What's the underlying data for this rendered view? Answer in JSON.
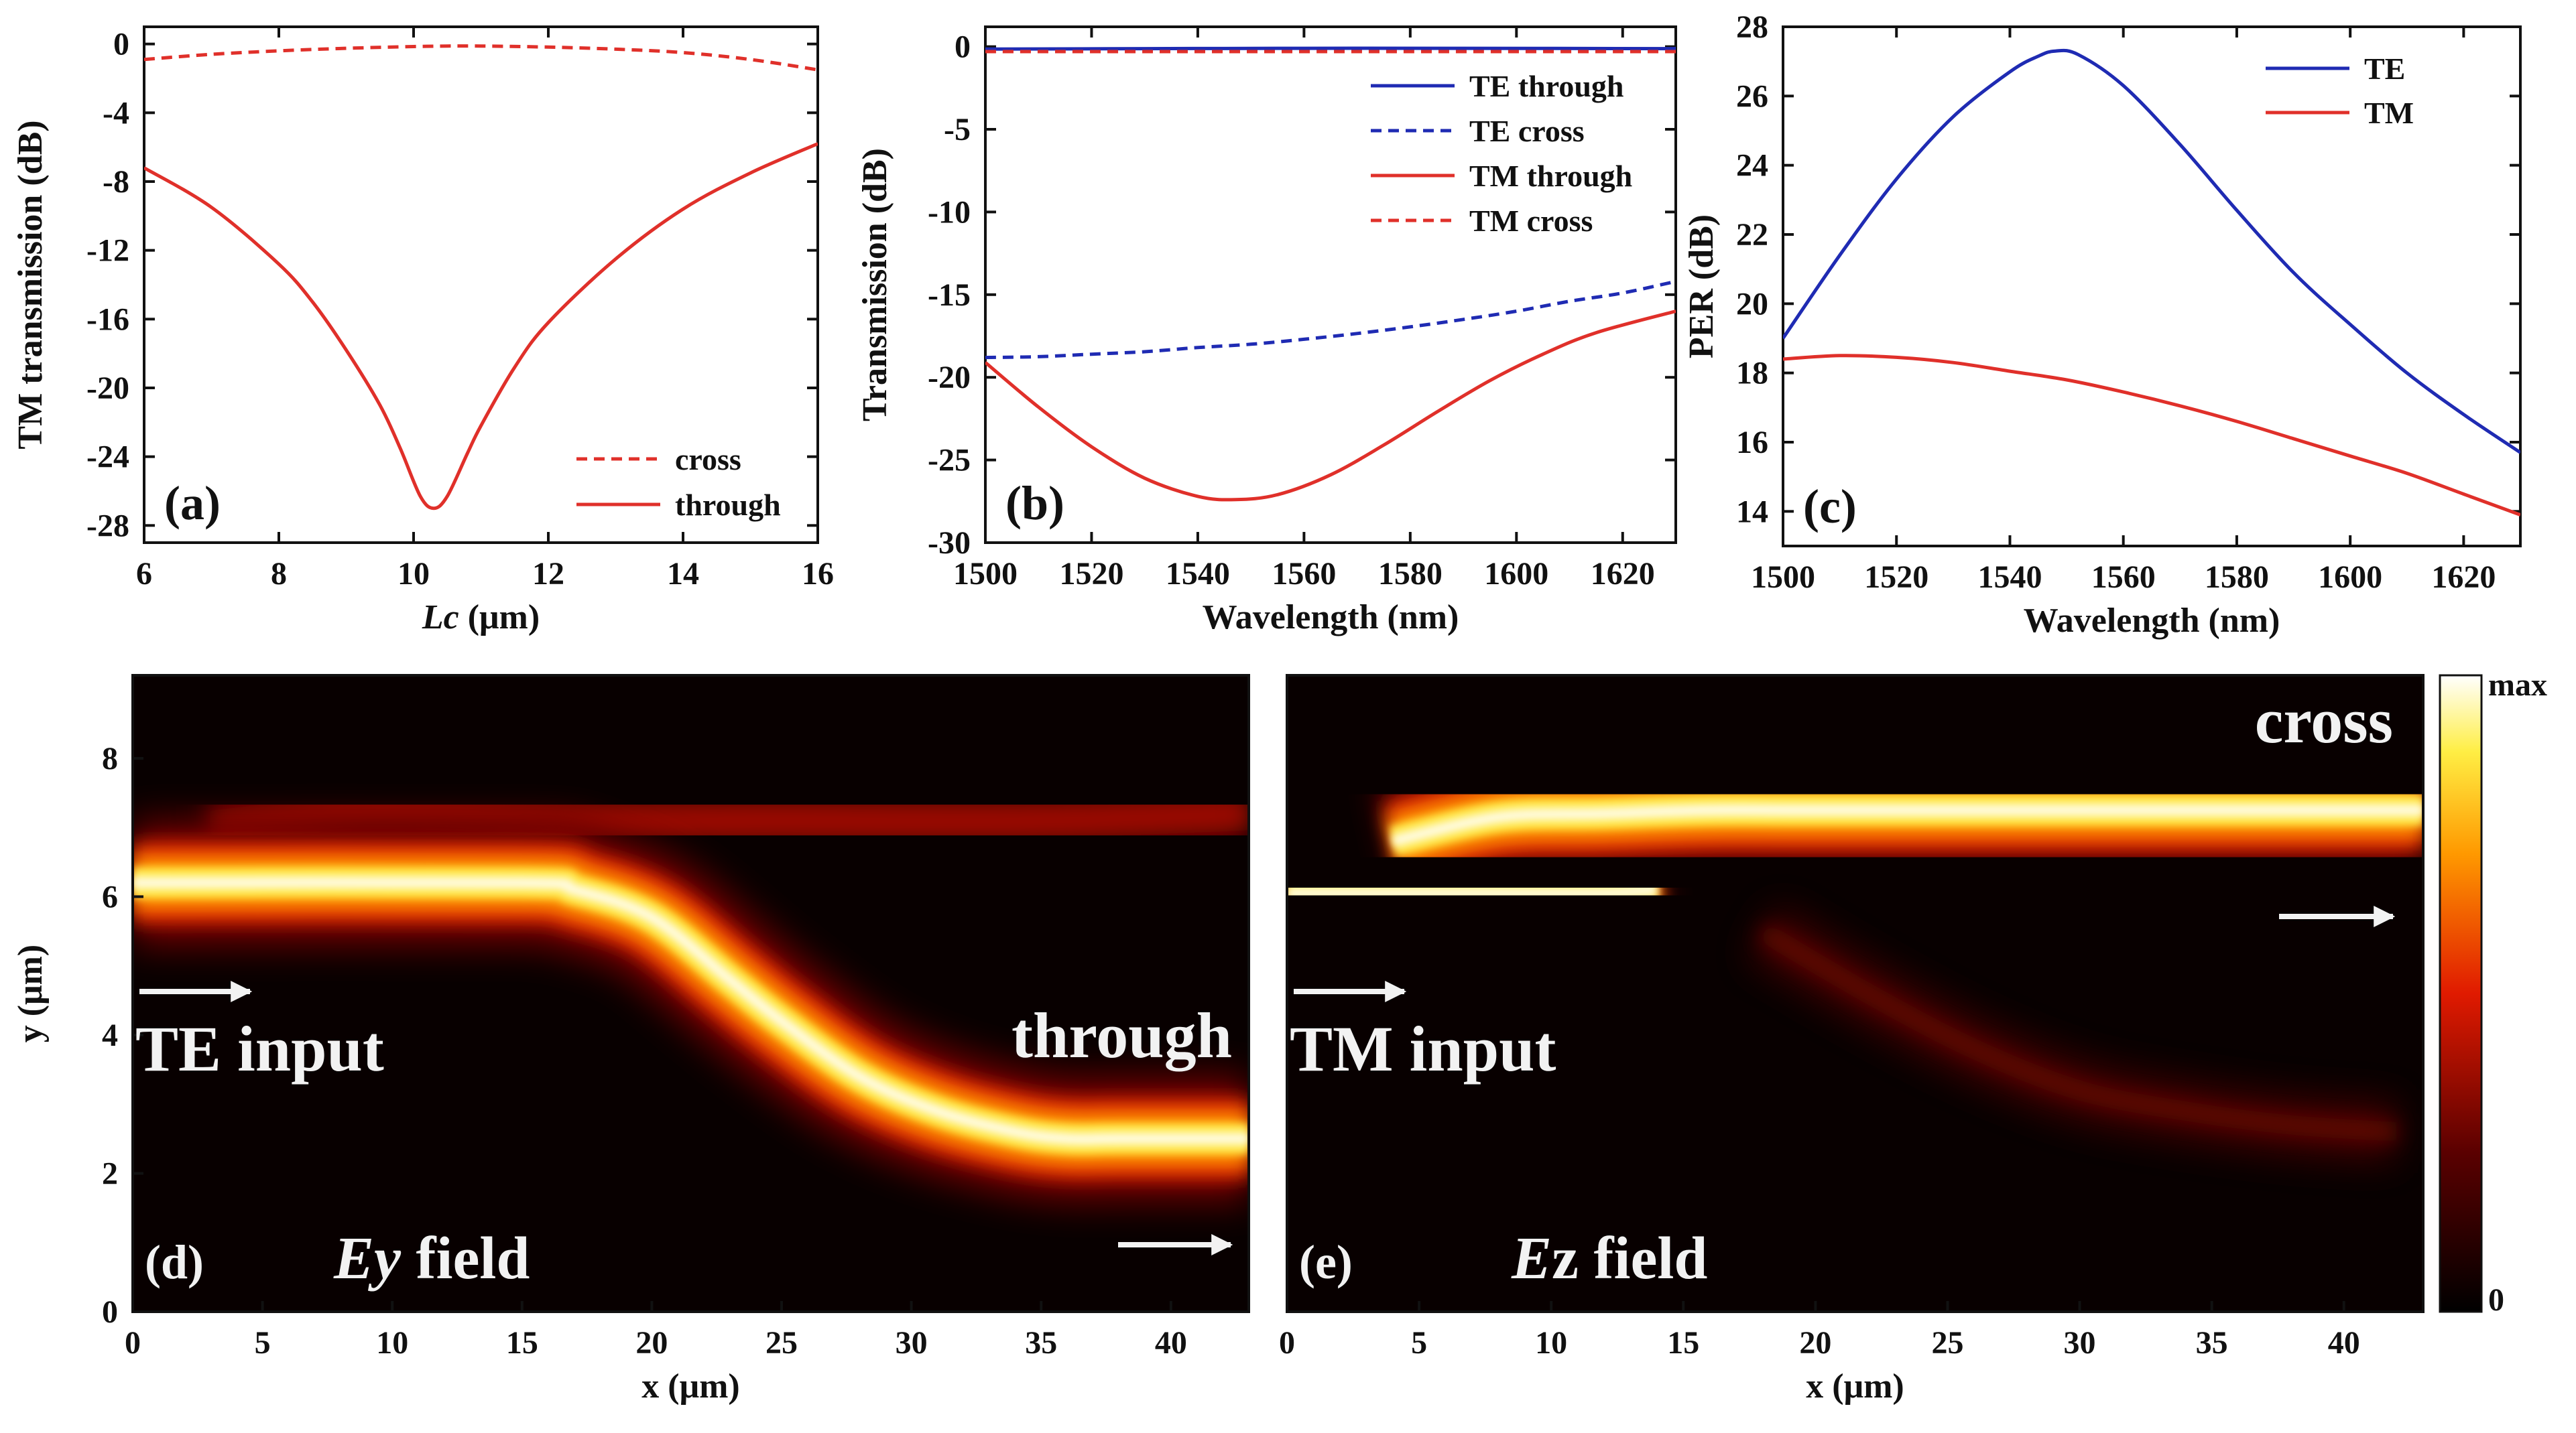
{
  "colors": {
    "te": "#1f2bb3",
    "tm": "#e0302a",
    "axis": "#111111",
    "overlay_text": "#f2f2f2",
    "field_bg": "#080000"
  },
  "chart_data": [
    {
      "id": "a",
      "type": "line",
      "panel_label": "(a)",
      "xlabel_italic": "Lc",
      "xlabel_rest": " (μm)",
      "ylabel": "TM transmission (dB)",
      "xlim": [
        6,
        16
      ],
      "ylim": [
        -29,
        1
      ],
      "xticks": [
        6,
        8,
        10,
        12,
        14,
        16
      ],
      "yticks": [
        0,
        -4,
        -8,
        -12,
        -16,
        -20,
        -24,
        -28
      ],
      "legend_position": "bottom-right",
      "series": [
        {
          "name": "cross",
          "style": "dashed",
          "color": "#e0302a",
          "x": [
            6,
            7,
            8,
            9,
            10,
            10.5,
            11,
            12,
            13,
            14,
            15,
            16
          ],
          "y": [
            -0.9,
            -0.6,
            -0.4,
            -0.25,
            -0.15,
            -0.12,
            -0.12,
            -0.18,
            -0.3,
            -0.5,
            -0.9,
            -1.5
          ]
        },
        {
          "name": "through",
          "style": "solid",
          "color": "#e0302a",
          "x": [
            6,
            7,
            8,
            8.5,
            9,
            9.5,
            9.8,
            10.1,
            10.3,
            10.5,
            10.8,
            11,
            11.5,
            12,
            13,
            14,
            15,
            16
          ],
          "y": [
            -7.2,
            -9.5,
            -12.8,
            -15,
            -17.8,
            -21,
            -23.5,
            -26.3,
            -27,
            -26.3,
            -23.8,
            -22.2,
            -18.8,
            -16.2,
            -12.5,
            -9.6,
            -7.5,
            -5.8
          ]
        }
      ]
    },
    {
      "id": "b",
      "type": "line",
      "panel_label": "(b)",
      "xlabel": "Wavelength (nm)",
      "ylabel": "Transmission (dB)",
      "xlim": [
        1500,
        1630
      ],
      "ylim": [
        -30,
        1.2
      ],
      "xticks": [
        1500,
        1520,
        1540,
        1560,
        1580,
        1600,
        1620
      ],
      "yticks": [
        0,
        -5,
        -10,
        -15,
        -20,
        -25,
        -30
      ],
      "legend_position": "top-right",
      "series": [
        {
          "name": "TE through",
          "style": "solid",
          "color": "#1f2bb3",
          "x": [
            1500,
            1530,
            1560,
            1590,
            1630
          ],
          "y": [
            -0.15,
            -0.12,
            -0.1,
            -0.1,
            -0.12
          ]
        },
        {
          "name": "TE cross",
          "style": "dashed",
          "color": "#1f2bb3",
          "x": [
            1500,
            1510,
            1520,
            1530,
            1540,
            1550,
            1560,
            1570,
            1580,
            1590,
            1600,
            1610,
            1620,
            1630
          ],
          "y": [
            -18.8,
            -18.75,
            -18.6,
            -18.45,
            -18.2,
            -18,
            -17.7,
            -17.35,
            -16.95,
            -16.5,
            -16,
            -15.4,
            -14.9,
            -14.2
          ]
        },
        {
          "name": "TM through",
          "style": "solid",
          "color": "#e0302a",
          "x": [
            1500,
            1510,
            1520,
            1530,
            1540,
            1547,
            1555,
            1565,
            1575,
            1585,
            1595,
            1605,
            1615,
            1630
          ],
          "y": [
            -19.1,
            -21.8,
            -24.2,
            -26.1,
            -27.2,
            -27.4,
            -27.1,
            -25.9,
            -24.1,
            -22.1,
            -20.2,
            -18.6,
            -17.3,
            -16
          ]
        },
        {
          "name": "TM cross",
          "style": "dashed",
          "color": "#e0302a",
          "x": [
            1500,
            1530,
            1560,
            1590,
            1630
          ],
          "y": [
            -0.3,
            -0.3,
            -0.3,
            -0.3,
            -0.3
          ]
        }
      ]
    },
    {
      "id": "c",
      "type": "line",
      "panel_label": "(c)",
      "xlabel": "Wavelength (nm)",
      "ylabel": "PER (dB)",
      "xlim": [
        1500,
        1630
      ],
      "ylim": [
        13,
        28
      ],
      "xticks": [
        1500,
        1520,
        1540,
        1560,
        1580,
        1600,
        1620
      ],
      "yticks": [
        14,
        16,
        18,
        20,
        22,
        24,
        26,
        28
      ],
      "legend_position": "top-right",
      "series": [
        {
          "name": "TE",
          "style": "solid",
          "color": "#1f2bb3",
          "x": [
            1500,
            1510,
            1520,
            1530,
            1540,
            1545,
            1548,
            1552,
            1560,
            1570,
            1580,
            1590,
            1600,
            1610,
            1620,
            1630
          ],
          "y": [
            19,
            21.4,
            23.6,
            25.4,
            26.7,
            27.15,
            27.3,
            27.2,
            26.3,
            24.6,
            22.7,
            20.9,
            19.4,
            18,
            16.8,
            15.7
          ]
        },
        {
          "name": "TM",
          "style": "solid",
          "color": "#e0302a",
          "x": [
            1500,
            1510,
            1520,
            1530,
            1540,
            1550,
            1560,
            1570,
            1580,
            1590,
            1600,
            1610,
            1620,
            1630
          ],
          "y": [
            18.4,
            18.5,
            18.45,
            18.3,
            18.05,
            17.8,
            17.45,
            17.05,
            16.6,
            16.1,
            15.6,
            15.1,
            14.5,
            13.9
          ]
        }
      ]
    },
    {
      "id": "d",
      "type": "heatmap",
      "panel_label": "(d)",
      "xlabel": "x (μm)",
      "ylabel": "y (μm)",
      "xlim": [
        0,
        43
      ],
      "ylim": [
        0,
        9.2
      ],
      "xticks": [
        0,
        5,
        10,
        15,
        20,
        25,
        30,
        35,
        40
      ],
      "yticks": [
        0,
        2,
        4,
        6,
        8
      ],
      "field_italic": "Ey",
      "field_rest": " field",
      "input_label": "TE input",
      "output_label": "through",
      "beam_path": {
        "x": [
          0,
          15,
          17,
          20,
          23,
          25,
          28,
          31,
          34,
          36,
          38,
          43
        ],
        "y": [
          6.2,
          6.2,
          6.1,
          5.7,
          4.8,
          4.2,
          3.4,
          2.9,
          2.6,
          2.5,
          2.5,
          2.5
        ]
      },
      "weak_upper_path": {
        "x": [
          3,
          8,
          12,
          18,
          25,
          35,
          43
        ],
        "y": [
          7.0,
          7.2,
          7.2,
          7.1,
          7.1,
          7.1,
          7.2
        ]
      }
    },
    {
      "id": "e",
      "type": "heatmap",
      "panel_label": "(e)",
      "xlabel": "x (μm)",
      "xlim": [
        0,
        43
      ],
      "ylim": [
        0,
        9.2
      ],
      "xticks": [
        0,
        5,
        10,
        15,
        20,
        25,
        30,
        35,
        40
      ],
      "field_italic": "E",
      "field_rest": "z field",
      "input_label": "TM input",
      "output_label": "cross",
      "colorbar_max": "max",
      "colorbar_min": "0",
      "beam_path": {
        "x": [
          0,
          7,
          12,
          14
        ],
        "y": [
          6.05,
          6.05,
          6.05,
          6.1
        ]
      },
      "upper_path": {
        "x": [
          4,
          8,
          12,
          16,
          20,
          30,
          40,
          43
        ],
        "y": [
          6.8,
          7.15,
          7.2,
          7.25,
          7.25,
          7.25,
          7.25,
          7.25
        ]
      },
      "weak_lower_path": {
        "x": [
          18,
          22,
          26,
          30,
          34,
          38,
          42
        ],
        "y": [
          5.5,
          4.6,
          3.8,
          3.2,
          2.9,
          2.7,
          2.6
        ]
      }
    }
  ]
}
